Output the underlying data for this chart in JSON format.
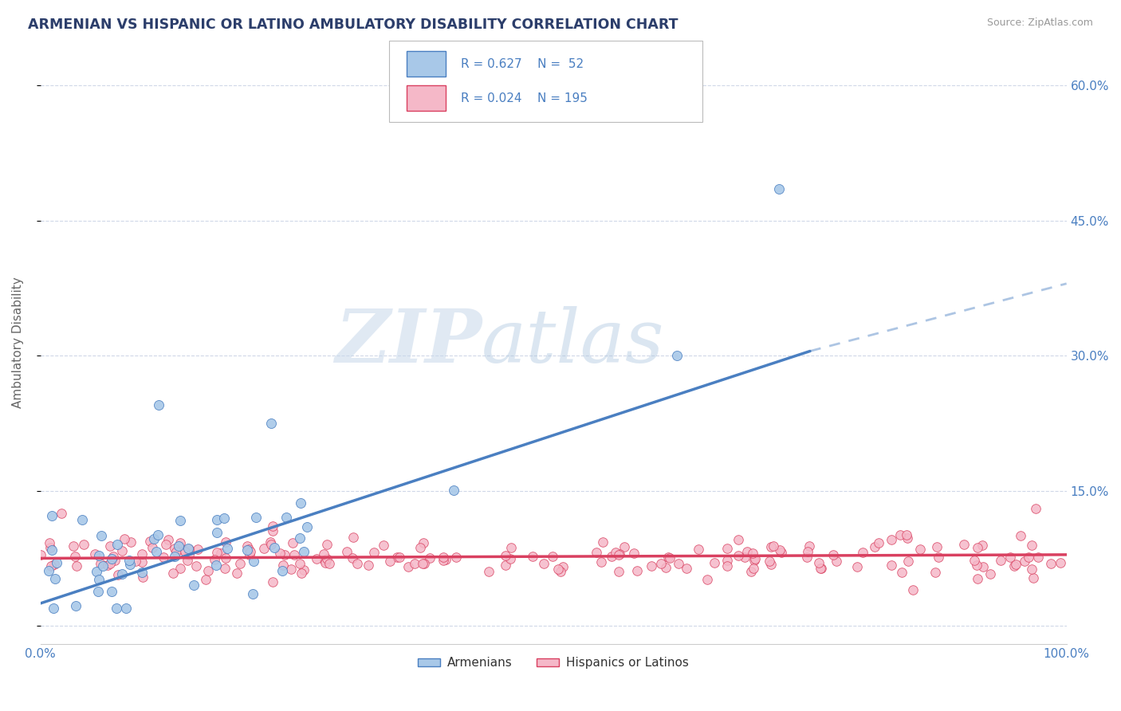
{
  "title": "ARMENIAN VS HISPANIC OR LATINO AMBULATORY DISABILITY CORRELATION CHART",
  "source": "Source: ZipAtlas.com",
  "ylabel": "Ambulatory Disability",
  "yticks": [
    0.0,
    0.15,
    0.3,
    0.45,
    0.6
  ],
  "ytick_labels": [
    "",
    "15.0%",
    "30.0%",
    "45.0%",
    "60.0%"
  ],
  "xmin": 0.0,
  "xmax": 1.0,
  "ymin": -0.02,
  "ymax": 0.65,
  "armenian_R": 0.627,
  "armenian_N": 52,
  "hispanic_R": 0.024,
  "hispanic_N": 195,
  "armenian_scatter_color": "#a8c8e8",
  "armenian_line_color": "#4a7fc1",
  "hispanic_scatter_color": "#f5b8c8",
  "hispanic_line_color": "#d94060",
  "legend_R_color": "#4a7fc1",
  "watermark_zip": "ZIP",
  "watermark_atlas": "atlas",
  "background_color": "#ffffff",
  "grid_color": "#d0d8e8",
  "title_color": "#2c3e6b",
  "axis_color": "#4a7fc1",
  "legend_label_armenian": "Armenians",
  "legend_label_hispanic": "Hispanics or Latinos",
  "arm_trend_x0": 0.0,
  "arm_trend_y0": 0.025,
  "arm_trend_x1": 0.75,
  "arm_trend_y1": 0.305,
  "arm_trend_ext_x1": 1.0,
  "arm_trend_ext_y1": 0.38,
  "hisp_trend_x0": 0.0,
  "hisp_trend_y0": 0.075,
  "hisp_trend_x1": 1.0,
  "hisp_trend_y1": 0.079
}
